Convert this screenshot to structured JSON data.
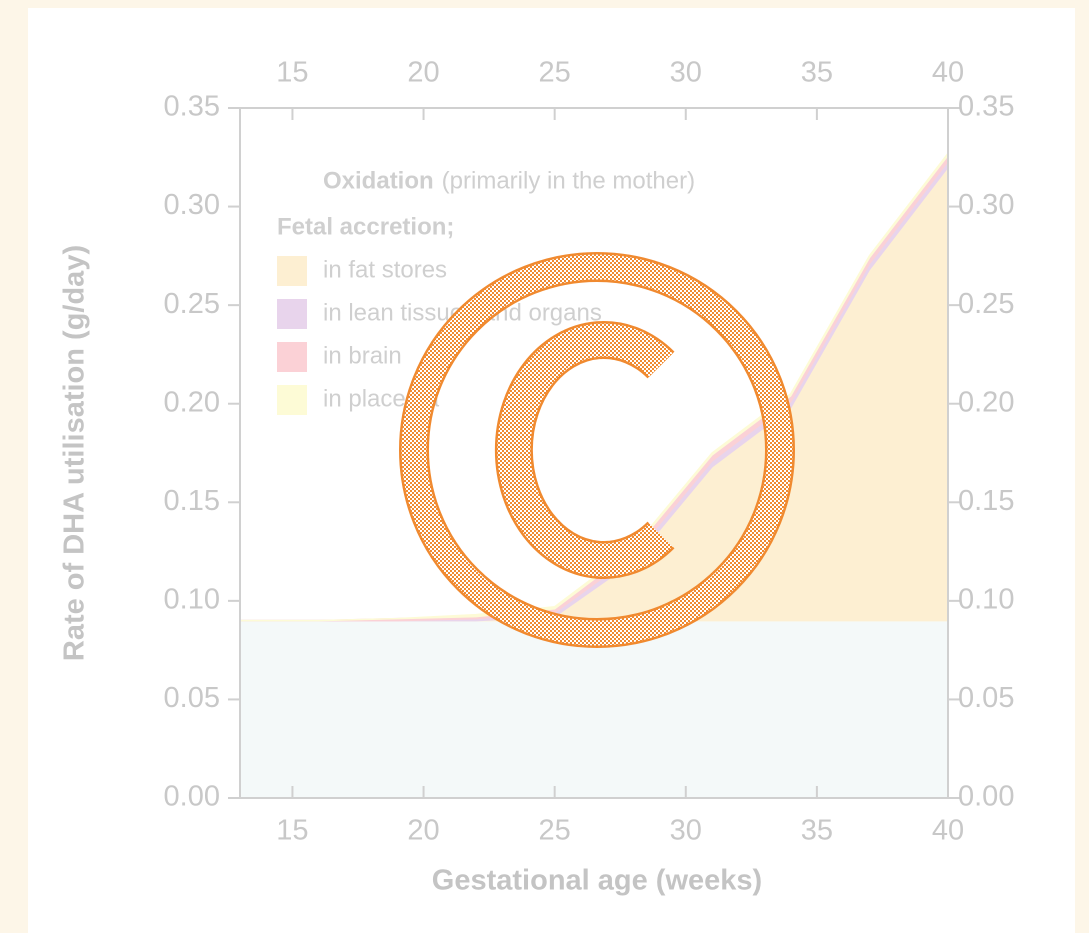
{
  "chart_data": {
    "type": "stacked_area",
    "x_label": "Gestational age (weeks)",
    "y_label": "Rate of DHA utilisation (g/day)",
    "x": [
      13,
      16,
      19,
      22,
      25,
      28,
      31,
      34,
      37,
      40
    ],
    "series": [
      {
        "name": "Oxidation",
        "color": "#f4f9f9",
        "values": [
          0.09,
          0.09,
          0.09,
          0.09,
          0.09,
          0.09,
          0.09,
          0.09,
          0.09,
          0.09
        ]
      },
      {
        "name": "in fat stores",
        "color": "#fdefd2",
        "values": [
          0,
          0,
          0,
          0,
          0.002,
          0.03,
          0.078,
          0.108,
          0.178,
          0.23
        ]
      },
      {
        "name": "in lean tissues and organs",
        "color": "#e8d4ec",
        "values": [
          0,
          0,
          0,
          0.001,
          0.002,
          0.003,
          0.003,
          0.003,
          0.003,
          0.003
        ]
      },
      {
        "name": "in brain",
        "color": "#fbd1d6",
        "values": [
          0,
          0,
          0.001,
          0.001,
          0.002,
          0.003,
          0.003,
          0.003,
          0.003,
          0.003
        ]
      },
      {
        "name": "in placenta",
        "color": "#fdfbd6",
        "values": [
          0,
          0,
          0,
          0.001,
          0.001,
          0.001,
          0.001,
          0.001,
          0.001,
          0.001
        ]
      }
    ],
    "legend_note": "(primarily in the mother)",
    "legend_heading": "Fetal accretion;",
    "xlim": [
      13,
      40
    ],
    "xticks": [
      15,
      20,
      25,
      30,
      35,
      40
    ],
    "ylim": [
      0,
      0.35
    ],
    "yticks": [
      {
        "value": 0,
        "label": "0.00"
      },
      {
        "value": 0.05,
        "label": "0.05"
      },
      {
        "value": 0.1,
        "label": "0.10"
      },
      {
        "value": 0.15,
        "label": "0.15"
      },
      {
        "value": 0.2,
        "label": "0.20"
      },
      {
        "value": 0.25,
        "label": "0.25"
      },
      {
        "value": 0.3,
        "label": "0.30"
      },
      {
        "value": 0.35,
        "label": "0.35"
      }
    ]
  }
}
